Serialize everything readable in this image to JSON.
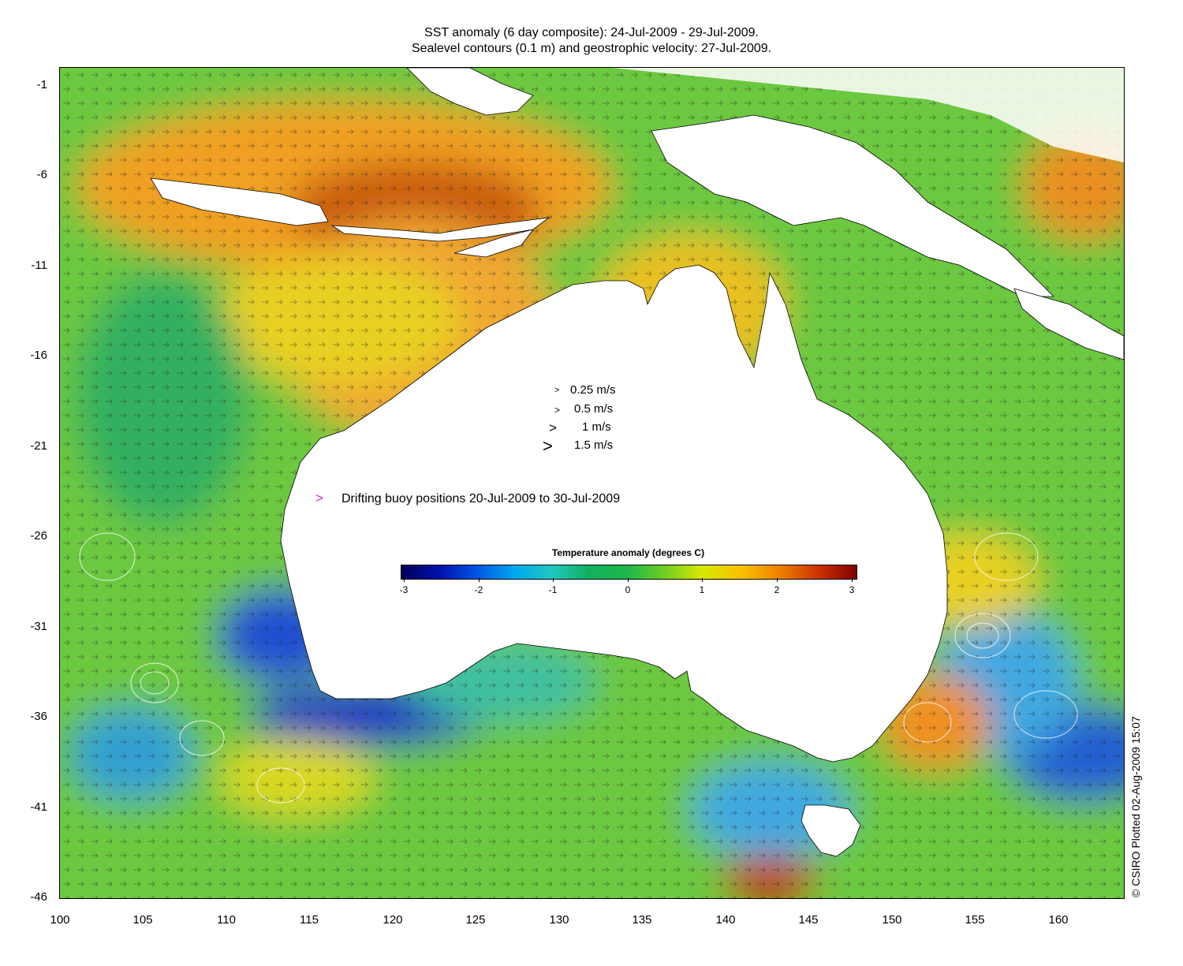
{
  "title_line1": "SST anomaly (6 day composite): 24-Jul-2009 - 29-Jul-2009.",
  "title_line2": "Sealevel contours (0.1 m) and geostrophic velocity: 27-Jul-2009.",
  "y_ticks": [
    "-1",
    "-6",
    "-11",
    "-16",
    "-21",
    "-26",
    "-31",
    "-36",
    "-41",
    "-46"
  ],
  "x_ticks": [
    "100",
    "105",
    "110",
    "115",
    "120",
    "125",
    "130",
    "135",
    "140",
    "145",
    "150",
    "155",
    "160"
  ],
  "velocity_legend": [
    {
      "arrow": ">",
      "label": "0.25 m/s"
    },
    {
      "arrow": ">",
      "label": "0.5 m/s"
    },
    {
      "arrow": ">",
      "label": "1 m/s"
    },
    {
      "arrow": ">",
      "label": "1.5 m/s"
    }
  ],
  "buoy": {
    "marker": ">",
    "label": "Drifting buoy positions 20-Jul-2009 to 30-Jul-2009",
    "color": "#d12ad1"
  },
  "colorbar": {
    "title": "Temperature anomaly (degrees C)",
    "ticks": [
      "-3",
      "-2",
      "-1",
      "0",
      "1",
      "2",
      "3"
    ],
    "range": [
      -3,
      3
    ],
    "colors": [
      "#00005a",
      "#0050e0",
      "#20c8c0",
      "#20b848",
      "#d8e800",
      "#f08000",
      "#800000"
    ]
  },
  "credit": "© CSIRO Plotted 02-Aug-2009 15:07",
  "map": {
    "lon_range": [
      100,
      164
    ],
    "lat_range": [
      -46,
      -1
    ],
    "land_color": "#ffffff",
    "ocean_base_color": "#6cc840"
  }
}
